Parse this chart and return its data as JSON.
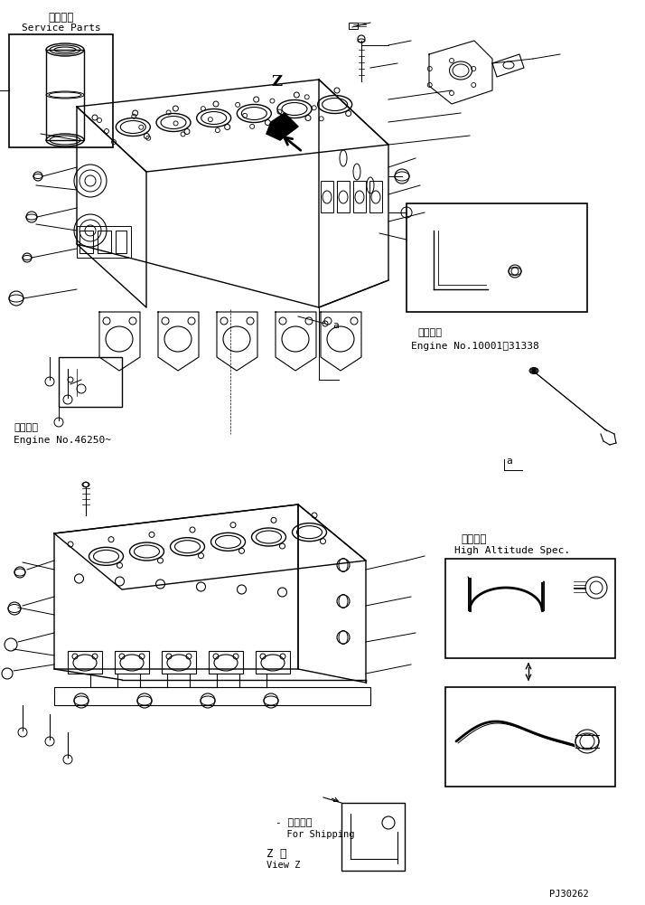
{
  "bg_color": "#ffffff",
  "line_color": "#000000",
  "title_top_japanese": "補給専用",
  "title_top_english": "Service Parts",
  "engine_note1_japanese": "適用号機",
  "engine_note1_english": "Engine No.46250~",
  "engine_note2_japanese": "適用号機",
  "engine_note2_english": "Engine No.10001～31338",
  "shipping_japanese": "運般部品",
  "shipping_english": "For Shipping",
  "view_japanese": "Z 視",
  "view_english": "View Z",
  "altitude_japanese": "高地仕様",
  "altitude_english": "High Altitude Spec.",
  "part_number": "PJ30262",
  "figsize": [
    7.14,
    10.01
  ],
  "dpi": 100
}
